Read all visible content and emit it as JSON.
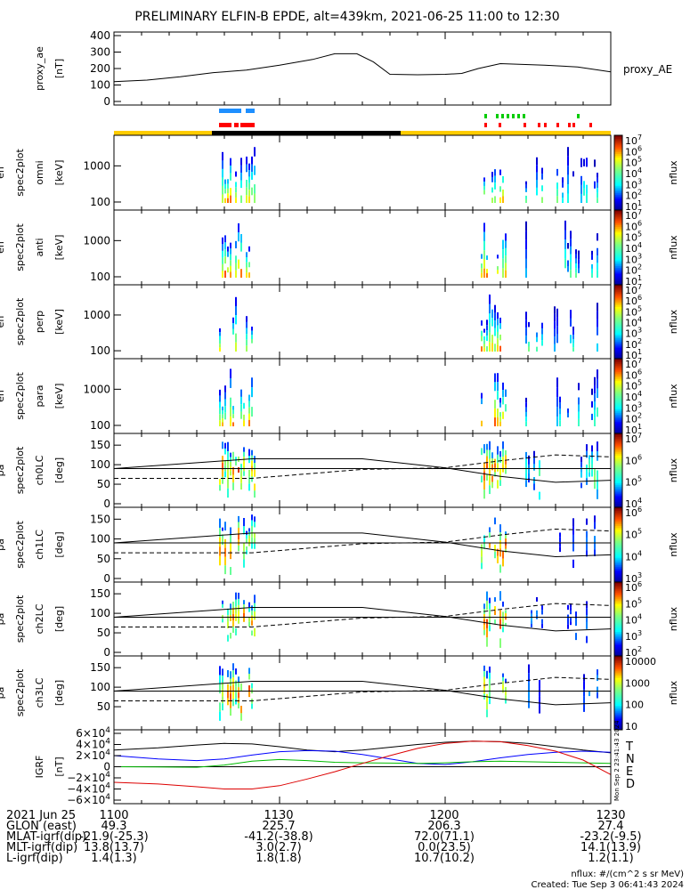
{
  "title": "PRELIMINARY ELFIN-B EPDE, alt=439km, 2021-06-25 11:00 to 12:30",
  "colors": {
    "sci_zone": "#ffcc00",
    "eclipse": "#000000",
    "fast_mode_upper": "#1e8fff",
    "fast_mode_lower": "#ff0000",
    "north_fast": "#00cc00",
    "south_fast": "#ff0000",
    "igrf_T": "#000000",
    "igrf_N": "#0000ff",
    "igrf_E": "#00bb00",
    "igrf_D": "#dd0000"
  },
  "panels": [
    {
      "name": "proxy_ae",
      "ylabel": [
        "proxy_ae",
        "[nT]"
      ],
      "yticks": [
        "400",
        "300",
        "200",
        "100",
        "0"
      ],
      "right_label": "proxy_AE"
    },
    {
      "name": "omni",
      "ylabel": [
        "elb",
        "pef",
        "en",
        "spec2plot",
        "omni",
        "[keV]"
      ],
      "yticks": [
        "1000",
        "100"
      ],
      "colorbar": {
        "ticks": [
          "10^7",
          "10^6",
          "10^5",
          "10^4",
          "10^3",
          "10^2",
          "10^1"
        ],
        "label": "nflux"
      }
    },
    {
      "name": "anti",
      "ylabel": [
        "elb",
        "pef",
        "en",
        "spec2plot",
        "anti",
        "[keV]"
      ],
      "yticks": [
        "1000",
        "100"
      ],
      "colorbar": {
        "ticks": [
          "10^7",
          "10^6",
          "10^5",
          "10^4",
          "10^3",
          "10^2",
          "10^1"
        ],
        "label": "nflux"
      }
    },
    {
      "name": "perp",
      "ylabel": [
        "elb",
        "pef",
        "en",
        "spec2plot",
        "perp",
        "[keV]"
      ],
      "yticks": [
        "1000",
        "100"
      ],
      "colorbar": {
        "ticks": [
          "10^7",
          "10^6",
          "10^5",
          "10^4",
          "10^3",
          "10^2",
          "10^1"
        ],
        "label": "nflux"
      }
    },
    {
      "name": "para",
      "ylabel": [
        "elb",
        "pef",
        "en",
        "spec2plot",
        "para",
        "[keV]"
      ],
      "yticks": [
        "1000",
        "100"
      ],
      "colorbar": {
        "ticks": [
          "10^7",
          "10^6",
          "10^5",
          "10^4",
          "10^3",
          "10^2",
          "10^1"
        ],
        "label": "nflux"
      }
    },
    {
      "name": "ch0LC",
      "ylabel": [
        "elb",
        "pef",
        "pa",
        "spec2plot",
        "ch0LC",
        "[deg]"
      ],
      "yticks": [
        "150",
        "100",
        "50",
        "0"
      ],
      "colorbar": {
        "ticks": [
          "10^7",
          "10^6",
          "10^5",
          "10^4"
        ],
        "label": "nflux"
      }
    },
    {
      "name": "ch1LC",
      "ylabel": [
        "elb",
        "pef",
        "pa",
        "spec2plot",
        "ch1LC",
        "[deg]"
      ],
      "yticks": [
        "150",
        "100",
        "50",
        "0"
      ],
      "colorbar": {
        "ticks": [
          "10^6",
          "10^5",
          "10^4",
          "10^3"
        ],
        "label": "nflux"
      }
    },
    {
      "name": "ch2LC",
      "ylabel": [
        "elb",
        "pef",
        "pa",
        "spec2plot",
        "ch2LC",
        "[deg]"
      ],
      "yticks": [
        "150",
        "100",
        "50",
        "0"
      ],
      "colorbar": {
        "ticks": [
          "10^6",
          "10^5",
          "10^4",
          "10^3",
          "10^2"
        ],
        "label": "nflux"
      }
    },
    {
      "name": "ch3LC",
      "ylabel": [
        "elb",
        "pef",
        "pa",
        "spec2plot",
        "ch3LC",
        "[deg]"
      ],
      "yticks": [
        "150",
        "100",
        "50"
      ],
      "colorbar": {
        "ticks": [
          "10000",
          "1000",
          "100",
          "10"
        ],
        "label": "nflux"
      }
    },
    {
      "name": "igrf",
      "ylabel": [
        "IGRF",
        "[nT]"
      ],
      "yticks": [
        "6×10^4",
        "4×10^4",
        "2×10^4",
        "0",
        "−2×10^4",
        "−4×10^4",
        "−6×10^4"
      ],
      "legend": [
        "T",
        "N",
        "E",
        "D"
      ],
      "side_text": "Mon Sep 2 23:41:43 2024"
    }
  ],
  "footer": {
    "rows": [
      {
        "label": "2021 Jun 25",
        "values": [
          "1100",
          "1130",
          "1200",
          "1230"
        ]
      },
      {
        "label": "GLON (east)",
        "values": [
          "49.3",
          "225.7",
          "206.3",
          "27.4"
        ]
      },
      {
        "label": "MLAT-igrf(dip)",
        "values": [
          "-21.9(-25.3)",
          "-41.2(-38.8)",
          "72.0(71.1)",
          "-23.2(-9.5)"
        ]
      },
      {
        "label": "MLT-igrf(dip)",
        "values": [
          "13.8(13.7)",
          "3.0(2.7)",
          "0.0(23.5)",
          "14.1(13.9)"
        ]
      },
      {
        "label": "L-igrf(dip)",
        "values": [
          "1.4(1.3)",
          "1.8(1.8)",
          "10.7(10.2)",
          "1.2(1.1)"
        ]
      }
    ],
    "units_note": "nflux: #/(cm^2 s sr MeV)",
    "created": "Created: Tue Sep  3 06:41:43 2024"
  },
  "chart_data": {
    "type": "line",
    "x_unit": "UT HHMM",
    "x_ticks": [
      "1100",
      "1130",
      "1200",
      "1230"
    ],
    "series": [
      {
        "name": "proxy_AE",
        "x": [
          "1100",
          "1106",
          "1112",
          "1118",
          "1124",
          "1130",
          "1136",
          "1140",
          "1144",
          "1147",
          "1150",
          "1155",
          "1200",
          "1203",
          "1206",
          "1210",
          "1214",
          "1218",
          "1224",
          "1230"
        ],
        "values": [
          120,
          130,
          150,
          175,
          190,
          220,
          255,
          290,
          290,
          240,
          165,
          162,
          165,
          170,
          200,
          230,
          225,
          220,
          210,
          180
        ]
      }
    ],
    "igrf_components": {
      "x": [
        "1100",
        "1108",
        "1115",
        "1120",
        "1125",
        "1130",
        "1135",
        "1140",
        "1145",
        "1150",
        "1155",
        "1200",
        "1205",
        "1210",
        "1215",
        "1220",
        "1225",
        "1230"
      ],
      "T": [
        30000,
        34000,
        39000,
        42000,
        41000,
        36000,
        30000,
        27000,
        30000,
        35000,
        40000,
        44000,
        46000,
        45000,
        42000,
        36000,
        30000,
        25000
      ],
      "N": [
        20000,
        14000,
        11000,
        14000,
        21000,
        27000,
        29000,
        28000,
        22000,
        14000,
        6000,
        4000,
        9000,
        16000,
        22000,
        26000,
        28000,
        26000
      ],
      "E": [
        0,
        -500,
        -1000,
        3000,
        10000,
        13000,
        11000,
        8000,
        7000,
        6500,
        6000,
        7000,
        9000,
        10000,
        9000,
        8000,
        7000,
        6000
      ],
      "D": [
        -28000,
        -31000,
        -36000,
        -40000,
        -40000,
        -34000,
        -22000,
        -9000,
        6000,
        20000,
        33000,
        42000,
        46000,
        45000,
        38000,
        28000,
        12000,
        -14000
      ]
    },
    "ylim_proxy_ae": [
      0,
      400
    ],
    "ylim_energy_keV": [
      60,
      7000
    ],
    "ylim_pitch_deg": [
      0,
      180
    ],
    "ylim_igrf": [
      -60000,
      60000
    ]
  }
}
